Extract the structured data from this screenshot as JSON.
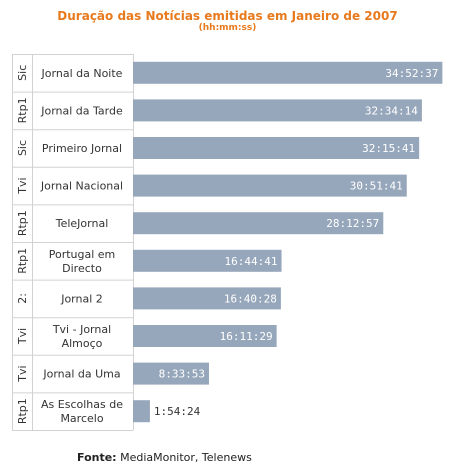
{
  "colors": {
    "title": "#e87a1e",
    "bar": "#97a7bb",
    "grid": "#d2d2d2",
    "text": "#333333",
    "bar_label_inside": "#ffffff",
    "bar_label_outside": "#333333"
  },
  "chart_data": {
    "type": "bar",
    "orientation": "horizontal",
    "title": "Duração das Notícias emitidas em Janeiro de 2007",
    "subtitle": "(hh:mm:ss)",
    "xlabel": "",
    "ylabel": "",
    "grid": true,
    "legend": "none",
    "xlim": [
      0,
      125000
    ],
    "categories": [
      {
        "channel": "Sic",
        "program": "Jornal da Noite"
      },
      {
        "channel": "Rtp1",
        "program": "Jornal da Tarde"
      },
      {
        "channel": "Sic",
        "program": "Primeiro Jornal"
      },
      {
        "channel": "Tvi",
        "program": "Jornal Nacional"
      },
      {
        "channel": "Rtp1",
        "program": "TeleJornal"
      },
      {
        "channel": "Rtp1",
        "program": "Portugal em Directo"
      },
      {
        "channel": "2:",
        "program": "Jornal 2"
      },
      {
        "channel": "Tvi",
        "program": "Tvi - Jornal Almoço"
      },
      {
        "channel": "Tvi",
        "program": "Jornal da Uma"
      },
      {
        "channel": "Rtp1",
        "program": "As Escolhas de Marcelo"
      }
    ],
    "values": [
      "34:52:37",
      "32:34:14",
      "32:15:41",
      "30:51:41",
      "28:12:57",
      "16:44:41",
      "16:40:28",
      "16:11:29",
      "8:33:53",
      "1:54:24"
    ]
  },
  "footer": {
    "label": "Fonte:",
    "text": " MediaMonitor, Telenews"
  }
}
